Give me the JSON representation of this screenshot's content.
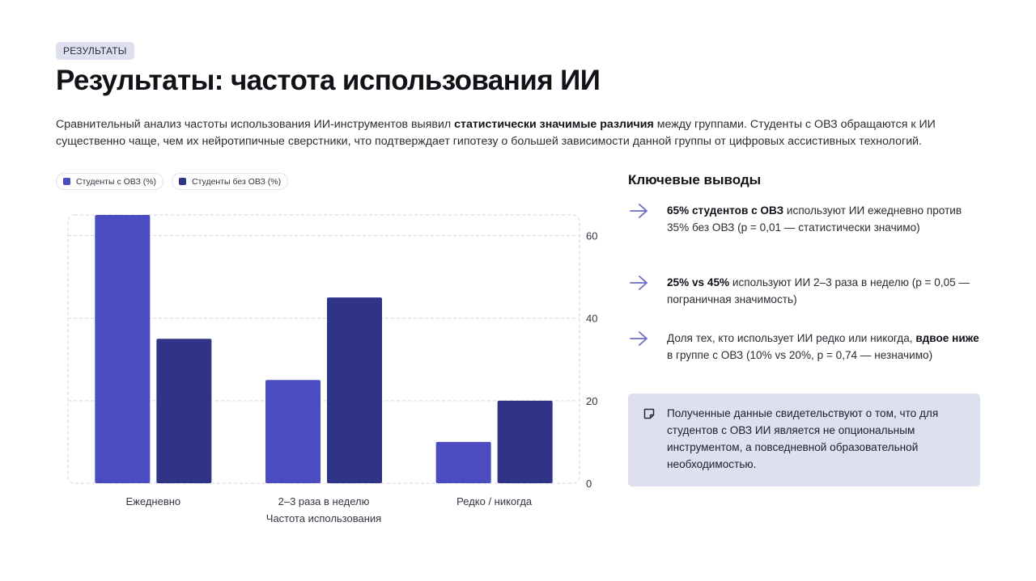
{
  "header": {
    "badge": "РЕЗУЛЬТАТЫ",
    "title": "Результаты: частота использования ИИ",
    "intro_before": "Сравнительный анализ частоты использования ИИ-инструментов выявил ",
    "intro_bold": "статистически значимые различия",
    "intro_after": " между группами. Студенты с ОВЗ обращаются к ИИ существенно чаще, чем их нейротипичные сверстники, что подтверждает гипотезу о большей зависимости данной группы от цифровых ассистивных технологий."
  },
  "chart_data": {
    "type": "bar",
    "categories": [
      "Ежедневно",
      "2–3 раза в неделю",
      "Редко / никогда"
    ],
    "series": [
      {
        "name": "Студенты с ОВЗ (%)",
        "values": [
          65,
          25,
          10
        ],
        "color": "#4a4cbf"
      },
      {
        "name": "Студенты без ОВЗ (%)",
        "values": [
          35,
          45,
          20
        ],
        "color": "#2f3486"
      }
    ],
    "xlabel": "Частота использования",
    "ylabel": "",
    "ylim": [
      0,
      65
    ],
    "yticks": [
      0,
      20,
      40,
      60
    ],
    "grid": true,
    "legend": "top-left"
  },
  "findings": {
    "title": "Ключевые выводы",
    "items": [
      {
        "bold": "65% студентов с ОВЗ",
        "rest": " используют ИИ ежедневно против 35% без ОВЗ (p = 0,01 — статистически значимо)"
      },
      {
        "bold": "25% vs 45%",
        "rest": " используют ИИ 2–3 раза в неделю (p = 0,05 — пограничная значимость)"
      },
      {
        "pre": "Доля тех, кто использует ИИ редко или никогда, ",
        "bold": "вдвое ниже",
        "rest": " в группе с ОВЗ (10% vs 20%, p = 0,74 — незначимо)"
      }
    ]
  },
  "note": {
    "text": "Полученные данные свидетельствуют о том, что для студентов с ОВЗ ИИ является не опциональным инструментом, а повседневной образовательной необходимостью."
  },
  "colors": {
    "accent": "#4a4cbf",
    "accent_dark": "#2f3486",
    "arrow": "#6b6dc4",
    "note_bg": "#dedff0"
  },
  "icons": {
    "finding": "arrow-right-icon",
    "note": "sticky-note-icon"
  }
}
